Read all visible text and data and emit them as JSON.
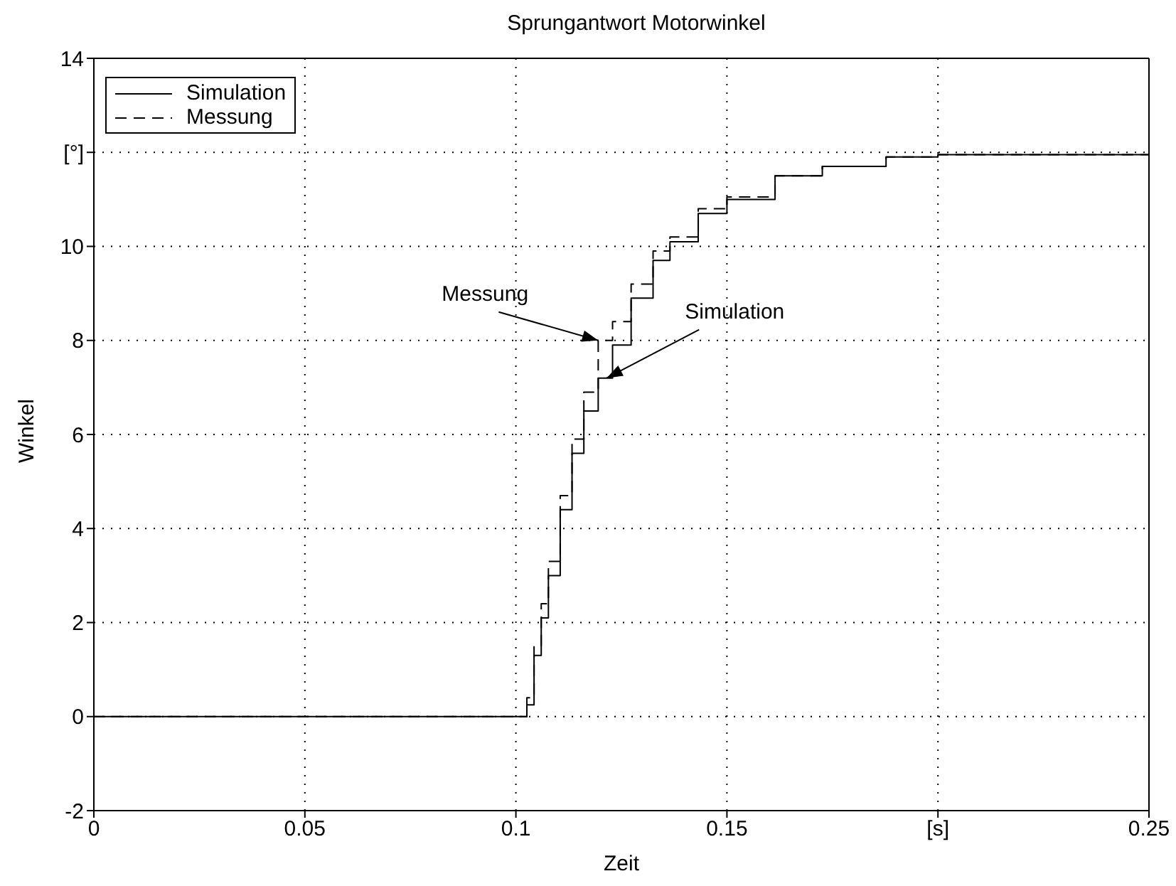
{
  "chart_data": {
    "type": "step",
    "title": "Sprungantwort Motorwinkel",
    "xlabel": "Zeit",
    "ylabel": "Winkel",
    "x": [
      0,
      0.1009,
      0.1026,
      0.1043,
      0.106,
      0.1077,
      0.1105,
      0.1133,
      0.1161,
      0.1195,
      0.1229,
      0.1273,
      0.1325,
      0.1365,
      0.1432,
      0.15,
      0.1614,
      0.1726,
      0.1877,
      0.2,
      0.25
    ],
    "series": [
      {
        "name": "Simulation",
        "color": "#000000",
        "line_style": "solid",
        "values": [
          0,
          0,
          0.25,
          1.3,
          2.1,
          3.0,
          4.4,
          5.6,
          6.5,
          7.2,
          7.9,
          8.9,
          9.7,
          10.1,
          10.7,
          11.0,
          11.5,
          11.7,
          11.9,
          11.95,
          12.0
        ]
      },
      {
        "name": "Messung",
        "color": "#000000",
        "line_style": "dashed",
        "values": [
          0,
          0,
          0.4,
          1.5,
          2.4,
          3.3,
          4.7,
          5.9,
          6.9,
          8.0,
          8.4,
          9.2,
          9.9,
          10.2,
          10.8,
          11.05,
          11.5,
          11.7,
          11.9,
          11.95,
          12.0
        ]
      }
    ],
    "xlim": [
      0,
      0.25
    ],
    "xticks": [
      0,
      0.05,
      0.1,
      0.15,
      {
        "value": 0.2,
        "label": "[s]"
      },
      0.25
    ],
    "ylim": [
      -2,
      14
    ],
    "yticks": [
      -2,
      0,
      2,
      4,
      6,
      8,
      10,
      {
        "value": 12,
        "label": "[°]"
      },
      14
    ],
    "grid": true,
    "legend": "top left",
    "marker": "none",
    "annotations": [
      {
        "text": "Messung",
        "x": 0.1195,
        "y": 8.0
      },
      {
        "text": "Simulation",
        "x": 0.1215,
        "y": 7.2
      }
    ]
  }
}
